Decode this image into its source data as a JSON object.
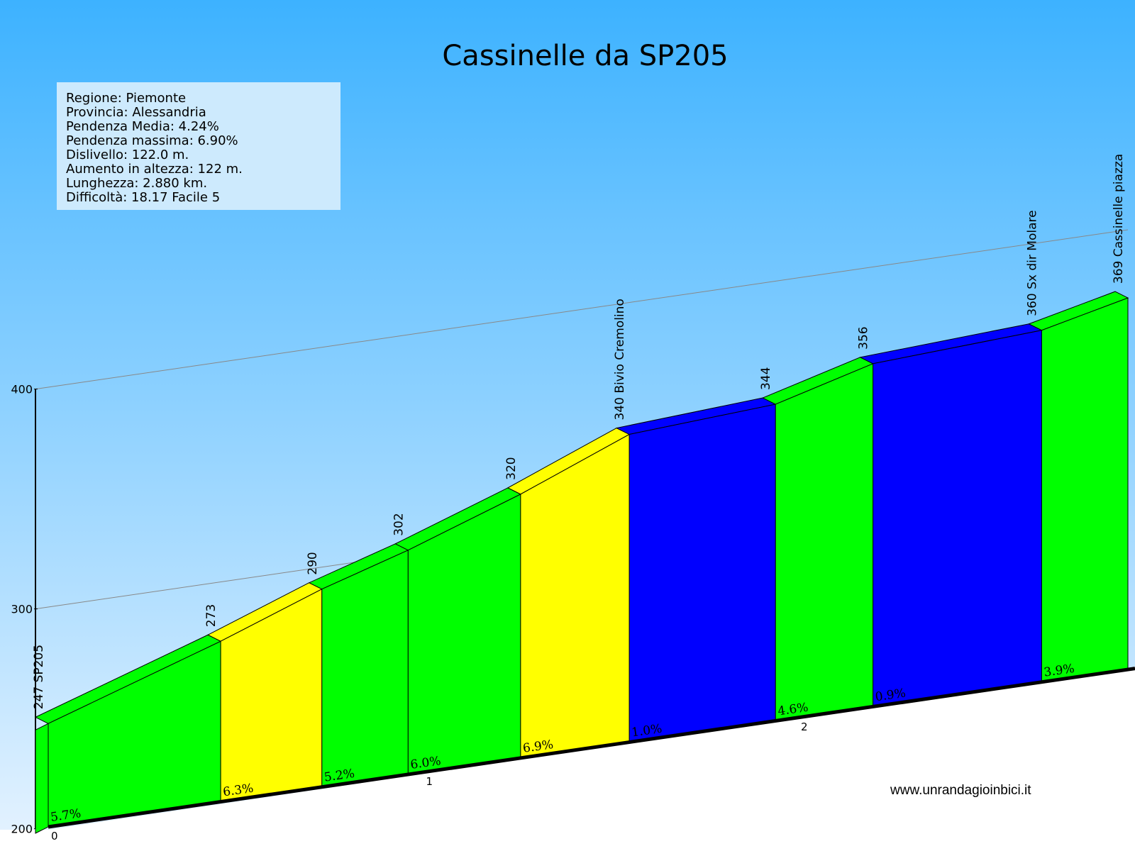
{
  "chart_data": {
    "type": "area",
    "title": "Cassinelle da SP205",
    "info": [
      "Regione: Piemonte",
      "Provincia: Alessandria",
      "Pendenza Media: 4.24%",
      "Pendenza massima: 6.90%",
      "Dislivello:   122.0 m.",
      "Aumento in altezza:   122 m.",
      "Lunghezza:  2.880 km.",
      "Difficoltà: 18.17 Facile 5"
    ],
    "y_ticks": [
      "200",
      "300",
      "400"
    ],
    "ylim": [
      200,
      400
    ],
    "x_ticks": [
      "0",
      "1",
      "2"
    ],
    "xlim": [
      0,
      2.88
    ],
    "points": [
      {
        "km": 0.0,
        "alt": 247,
        "label": "247 SP205"
      },
      {
        "km": 0.46,
        "alt": 273,
        "label": "273"
      },
      {
        "km": 0.73,
        "alt": 290,
        "label": "290"
      },
      {
        "km": 0.96,
        "alt": 302,
        "label": "302"
      },
      {
        "km": 1.26,
        "alt": 320,
        "label": "320"
      },
      {
        "km": 1.55,
        "alt": 340,
        "label": "340 Bivio Cremolino"
      },
      {
        "km": 1.94,
        "alt": 344,
        "label": "344"
      },
      {
        "km": 2.2,
        "alt": 356,
        "label": "356"
      },
      {
        "km": 2.65,
        "alt": 360,
        "label": "360 Sx dir Molare"
      },
      {
        "km": 2.88,
        "alt": 369,
        "label": "369 Cassinelle piazza"
      }
    ],
    "segments": [
      {
        "grade": "5.7%",
        "color": "#00ff00"
      },
      {
        "grade": "6.3%",
        "color": "#ffff00"
      },
      {
        "grade": "5.2%",
        "color": "#00ff00"
      },
      {
        "grade": "6.0%",
        "color": "#00ff00"
      },
      {
        "grade": "6.9%",
        "color": "#ffff00"
      },
      {
        "grade": "1.0%",
        "color": "#0000ff"
      },
      {
        "grade": "4.6%",
        "color": "#00ff00"
      },
      {
        "grade": "0.9%",
        "color": "#0000ff"
      },
      {
        "grade": "3.9%",
        "color": "#00ff00"
      }
    ],
    "grid": true
  },
  "website": "www.unrandagioinbici.it",
  "colors": {
    "sky_top": "#3db2ff",
    "sky_bottom": "#ddeeff",
    "info_box": "#cdeafd"
  }
}
